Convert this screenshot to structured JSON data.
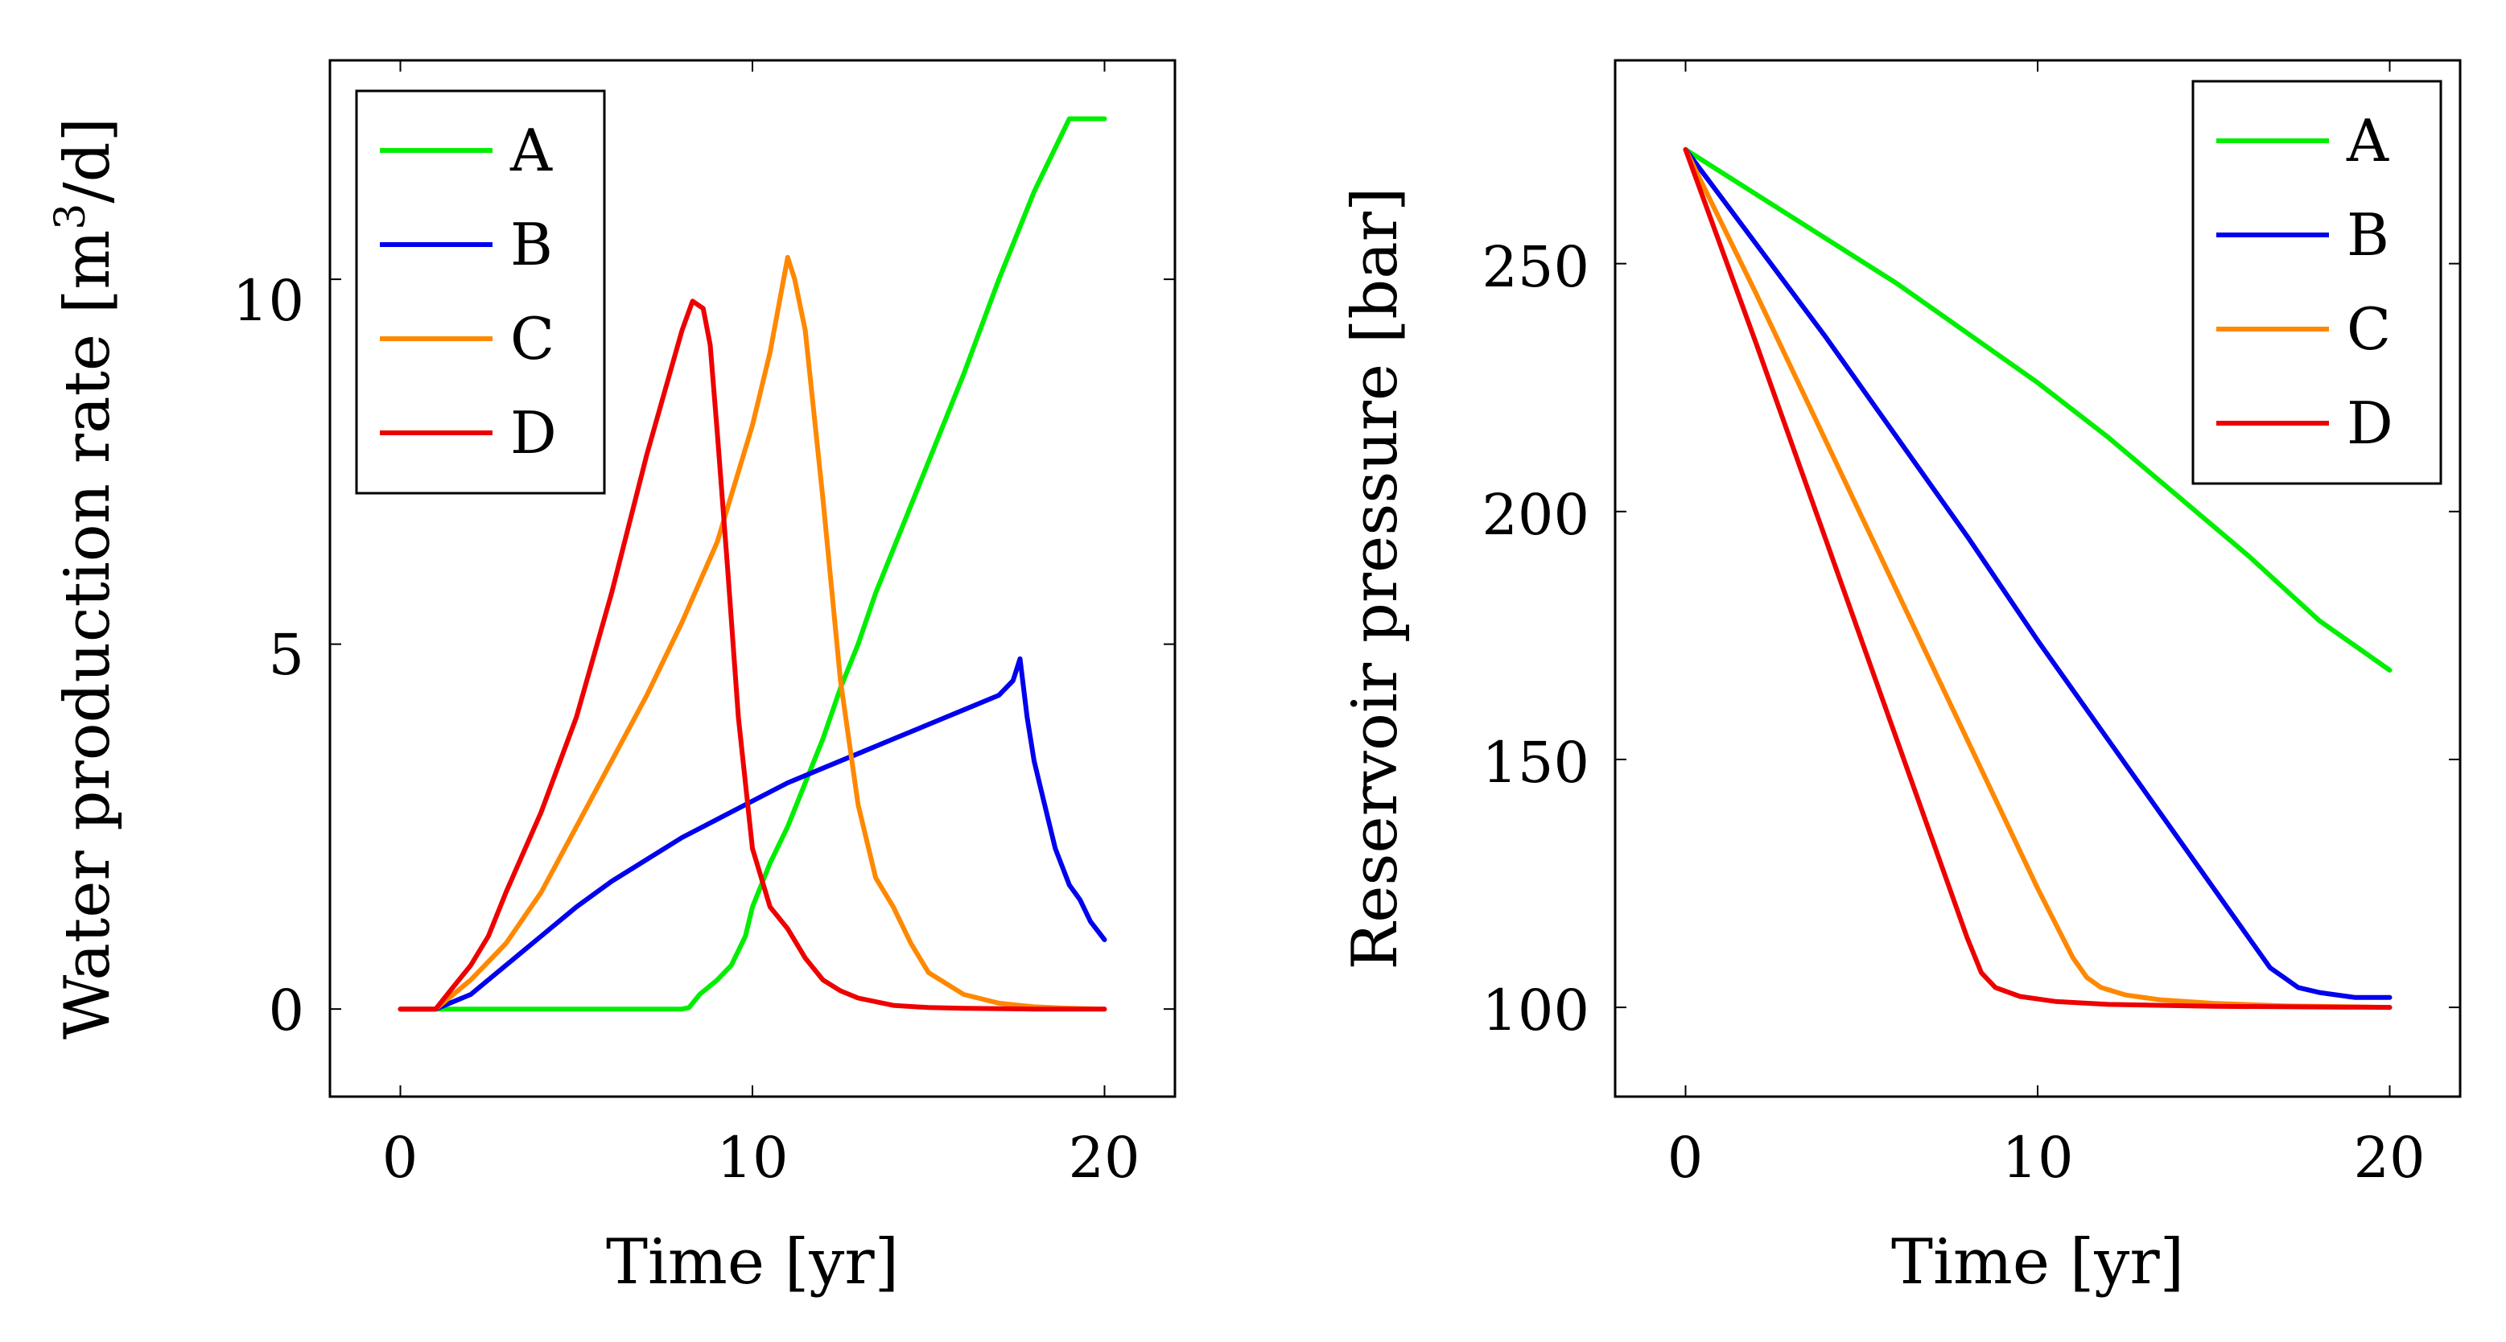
{
  "chart_data": [
    {
      "type": "line",
      "xlabel": "Time [yr]",
      "ylabel": "Water production rate [m",
      "ylabel_sup": "3",
      "ylabel_tail": "/d]",
      "xlim": [
        -2.0,
        22.0
      ],
      "ylim": [
        -1.2,
        13.0
      ],
      "xticks": [
        0,
        10,
        20
      ],
      "xtick_labels": [
        "0",
        "10",
        "20"
      ],
      "yticks": [
        0,
        5,
        10
      ],
      "ytick_labels": [
        "0",
        "5",
        "10"
      ],
      "legend_position": "top-left",
      "series": [
        {
          "name": "A",
          "color": "#00ee00",
          "x": [
            0,
            1,
            2,
            3,
            4,
            5,
            6,
            7,
            8,
            8.2,
            8.5,
            9,
            9.4,
            9.8,
            10,
            10.5,
            11,
            11.5,
            12,
            12.5,
            13,
            13.5,
            14,
            14.5,
            15,
            16,
            17,
            18,
            19,
            20
          ],
          "y": [
            0,
            0,
            0,
            0,
            0,
            0,
            0,
            0,
            0,
            0.02,
            0.2,
            0.4,
            0.6,
            1.0,
            1.4,
            2.0,
            2.5,
            3.1,
            3.7,
            4.4,
            5.0,
            5.7,
            6.3,
            6.9,
            7.5,
            8.7,
            10.0,
            11.2,
            12.2,
            12.2
          ]
        },
        {
          "name": "B",
          "color": "#0000ee",
          "x": [
            0,
            1,
            2,
            3,
            4,
            5,
            6,
            7,
            8,
            9,
            10,
            11,
            12,
            13,
            14,
            15,
            16,
            17,
            17.4,
            17.6,
            17.8,
            18,
            18.3,
            18.6,
            19,
            19.3,
            19.6,
            20
          ],
          "y": [
            0,
            0,
            0.2,
            0.6,
            1.0,
            1.4,
            1.75,
            2.05,
            2.35,
            2.6,
            2.85,
            3.1,
            3.3,
            3.5,
            3.7,
            3.9,
            4.1,
            4.3,
            4.5,
            4.8,
            4.0,
            3.4,
            2.8,
            2.2,
            1.7,
            1.5,
            1.2,
            0.95
          ]
        },
        {
          "name": "C",
          "color": "#ff8800",
          "x": [
            0,
            1,
            2,
            3,
            4,
            5,
            6,
            7,
            8,
            9,
            10,
            10.5,
            11,
            11.2,
            11.5,
            12,
            12.5,
            13,
            13.5,
            14,
            14.5,
            15,
            16,
            17,
            18,
            19,
            20
          ],
          "y": [
            0,
            0,
            0.4,
            0.9,
            1.6,
            2.5,
            3.4,
            4.3,
            5.3,
            6.4,
            8.0,
            9.0,
            10.3,
            10.0,
            9.3,
            7.0,
            4.5,
            2.8,
            1.8,
            1.4,
            0.9,
            0.5,
            0.2,
            0.08,
            0.03,
            0.01,
            0.0
          ]
        },
        {
          "name": "D",
          "color": "#ee0000",
          "x": [
            0,
            1,
            1.5,
            2,
            2.5,
            3,
            4,
            5,
            6,
            7,
            8,
            8.3,
            8.6,
            8.8,
            9,
            9.3,
            9.6,
            10,
            10.5,
            11,
            11.5,
            12,
            12.5,
            13,
            14,
            15,
            16,
            18,
            20
          ],
          "y": [
            0,
            0,
            0.3,
            0.6,
            1.0,
            1.6,
            2.7,
            4.0,
            5.7,
            7.6,
            9.3,
            9.7,
            9.6,
            9.1,
            7.9,
            6.0,
            4.0,
            2.2,
            1.4,
            1.1,
            0.7,
            0.4,
            0.25,
            0.15,
            0.05,
            0.02,
            0.01,
            0.0,
            0.0
          ]
        }
      ]
    },
    {
      "type": "line",
      "xlabel": "Time [yr]",
      "ylabel": "Reservoir pressure [bar]",
      "xlim": [
        -2.0,
        22.0
      ],
      "ylim": [
        82,
        291
      ],
      "xticks": [
        0,
        10,
        20
      ],
      "xtick_labels": [
        "0",
        "10",
        "20"
      ],
      "yticks": [
        100,
        150,
        200,
        250
      ],
      "ytick_labels": [
        "100",
        "150",
        "200",
        "250"
      ],
      "legend_position": "top-right",
      "series": [
        {
          "name": "A",
          "color": "#00ee00",
          "x": [
            0,
            2,
            4,
            6,
            8,
            10,
            12,
            14,
            16,
            18,
            20
          ],
          "y": [
            273,
            264,
            255,
            246,
            236,
            226,
            215,
            203,
            191,
            178,
            168
          ]
        },
        {
          "name": "B",
          "color": "#0000ee",
          "x": [
            0,
            2,
            4,
            6,
            8,
            10,
            12,
            14,
            16,
            16.6,
            17,
            17.4,
            18,
            19,
            20
          ],
          "y": [
            273,
            254,
            235,
            215,
            195,
            174,
            154,
            134,
            114,
            108,
            106,
            104,
            103,
            102,
            102
          ]
        },
        {
          "name": "C",
          "color": "#ff8800",
          "x": [
            0,
            2,
            4,
            6,
            8,
            10,
            11,
            11.4,
            11.8,
            12.5,
            13.5,
            15,
            17,
            20
          ],
          "y": [
            273,
            244,
            214,
            184,
            154,
            124,
            110,
            106,
            104,
            102.5,
            101.5,
            100.8,
            100.3,
            100
          ]
        },
        {
          "name": "D",
          "color": "#ee0000",
          "x": [
            0,
            2,
            4,
            6,
            8,
            8.4,
            8.8,
            9.5,
            10.5,
            12,
            15,
            20
          ],
          "y": [
            273,
            234,
            194,
            154,
            114,
            107,
            104,
            102.2,
            101.2,
            100.6,
            100.2,
            100
          ]
        }
      ]
    }
  ]
}
